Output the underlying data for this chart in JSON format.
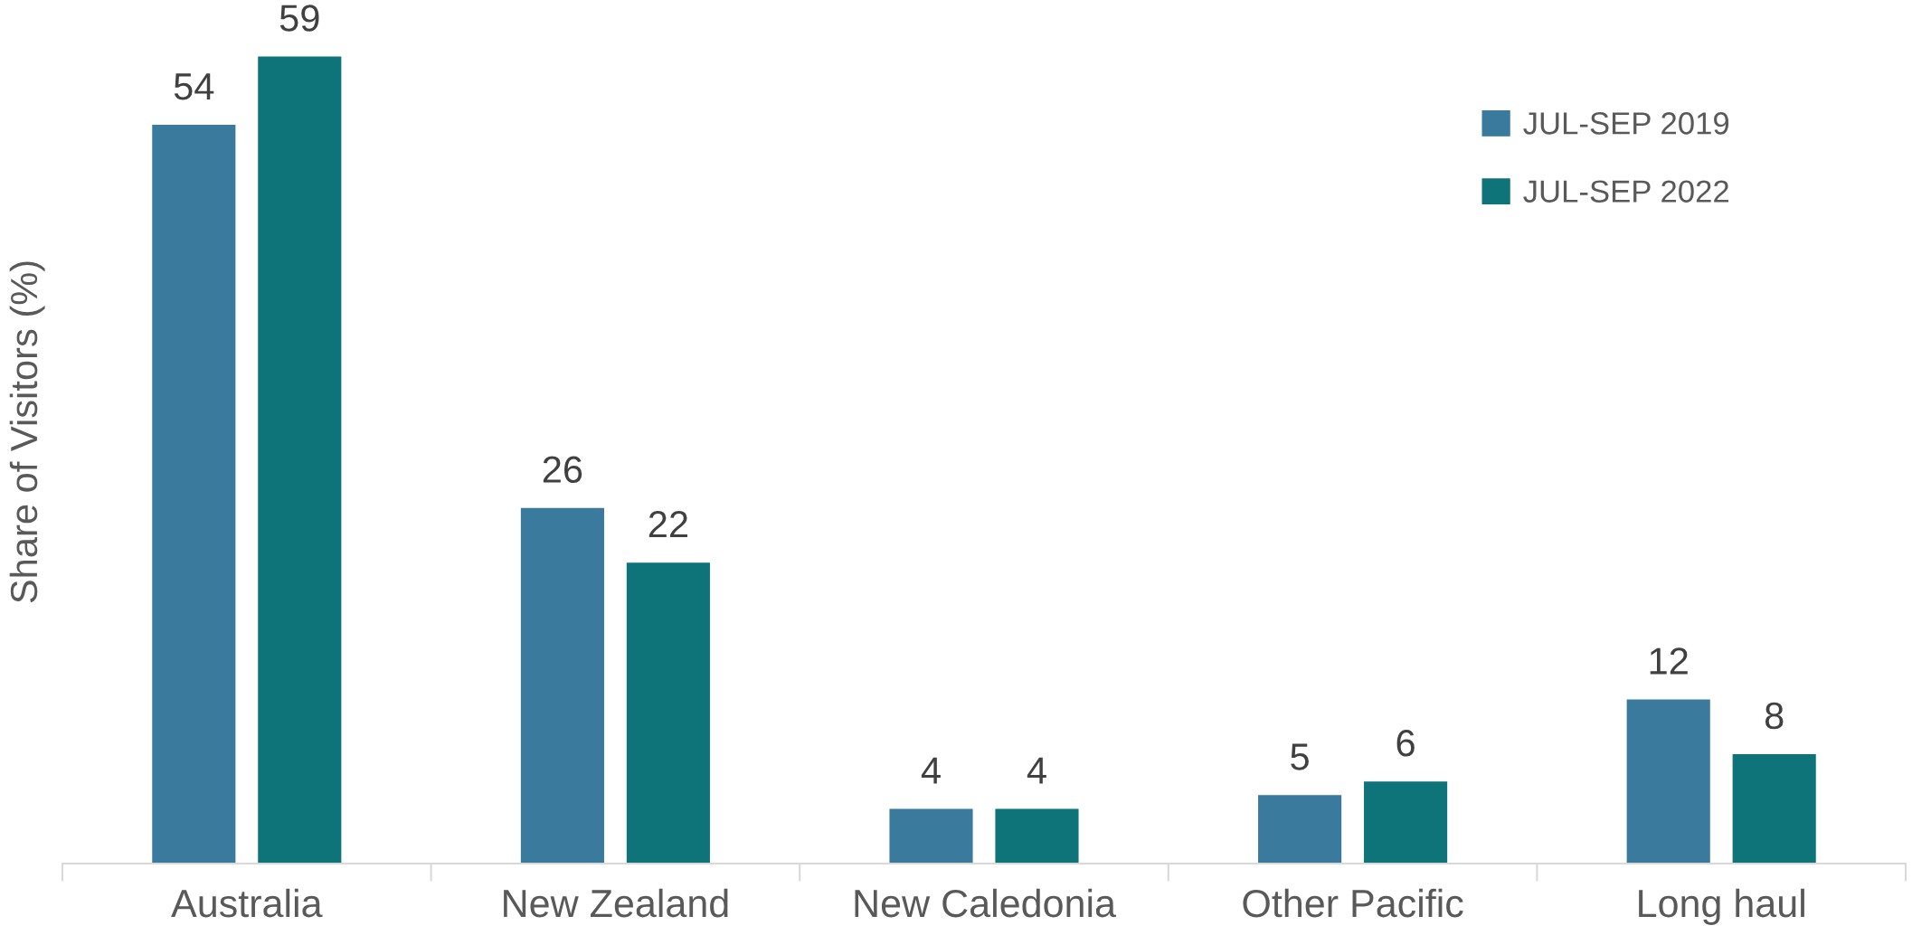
{
  "chart_data": {
    "type": "bar",
    "ylabel": "Share of Visitors (%)",
    "categories": [
      "Australia",
      "New Zealand",
      "New Caledonia",
      "Other Pacific",
      "Long haul"
    ],
    "series": [
      {
        "name": "JUL-SEP 2019",
        "color": "#3a7a9c",
        "values": [
          54,
          26,
          4,
          5,
          12
        ]
      },
      {
        "name": "JUL-SEP 2022",
        "color": "#0e7479",
        "values": [
          59,
          22,
          4,
          6,
          8
        ]
      }
    ],
    "data_labels": true,
    "legend": "top right",
    "tick_labels": "x"
  }
}
